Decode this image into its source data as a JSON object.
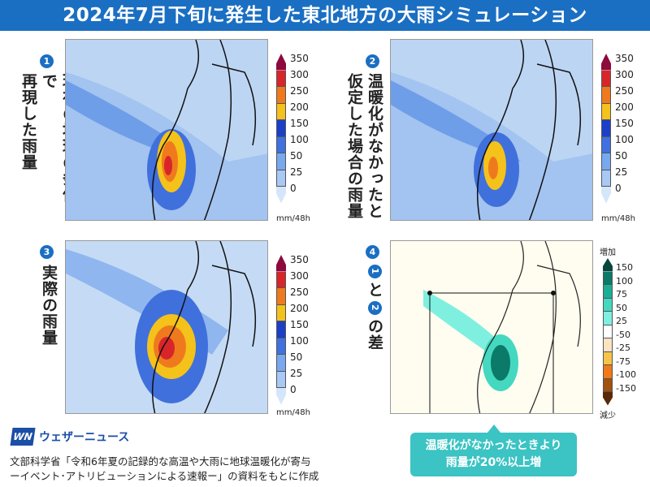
{
  "title": "2024年7月下旬に発生した東北地方の大雨シミュレーション",
  "panels": [
    {
      "num": "1",
      "lines": [
        "現在の地球の条件で",
        "再現した雨量"
      ]
    },
    {
      "num": "2",
      "lines": [
        "温暖化がなかったと",
        "仮定した場合の雨量"
      ]
    },
    {
      "num": "3",
      "lines": [
        "実際の雨量"
      ]
    },
    {
      "num": "4",
      "diff_a": "1",
      "diff_mid": "と",
      "diff_b": "2",
      "diff_end": "の差"
    }
  ],
  "rain_scale": {
    "labels": [
      "350",
      "300",
      "250",
      "200",
      "150",
      "100",
      "50",
      "25",
      "0"
    ],
    "colors": [
      "#8c0a3c",
      "#d8252a",
      "#ef7a1e",
      "#f4c21a",
      "#1c3fc8",
      "#3f72e0",
      "#78a8ef",
      "#a9c9f5",
      "#d6e6fa"
    ],
    "unit": "mm/48h"
  },
  "diff_scale": {
    "top": "増加",
    "bottom": "減少",
    "labels": [
      "150",
      "100",
      "75",
      "50",
      "25",
      "-50",
      "-25",
      "-75",
      "-100",
      "-150"
    ],
    "colors": [
      "#06463e",
      "#0b7a68",
      "#1aae96",
      "#45d8c0",
      "#7ff0e0",
      "#ffffff",
      "#fbe3c2",
      "#f5c54a",
      "#f07a1a",
      "#a0520e",
      "#5a2a08"
    ]
  },
  "brand": {
    "logo": "WN",
    "name": "ウェザーニュース"
  },
  "source": [
    "文部科学省「令和6年夏の記録的な高温や大雨に地球温暖化が寄与",
    "ーイベント･アトリビューションによる速報ー」の資料をもとに作成"
  ],
  "callout": [
    "温暖化がなかったときより",
    "雨量が20%以上増"
  ]
}
